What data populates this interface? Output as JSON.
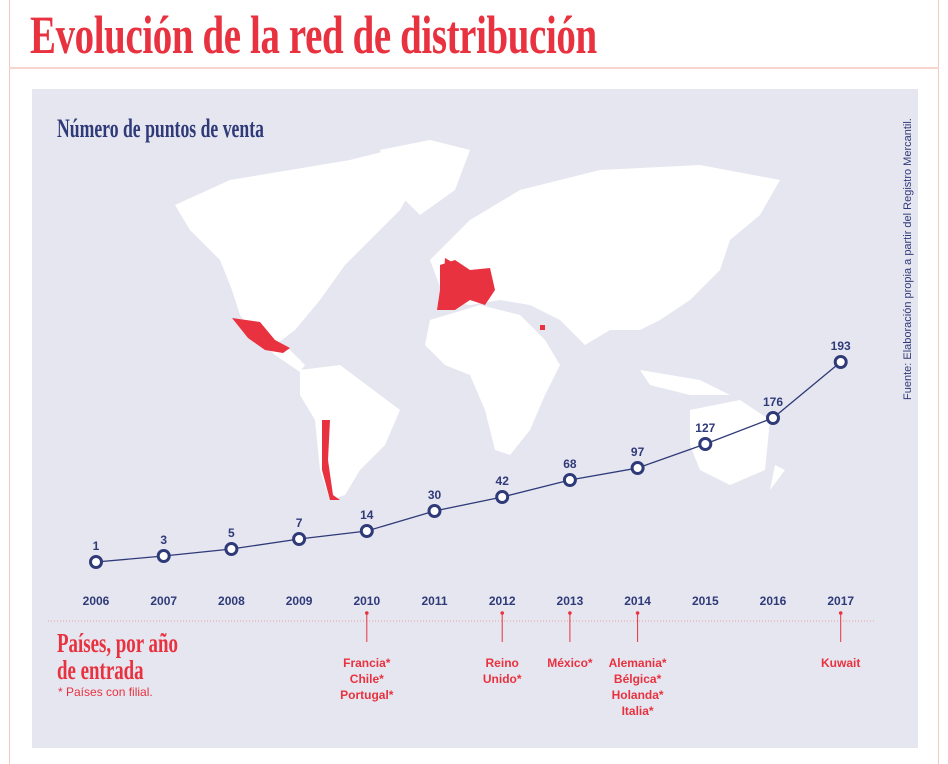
{
  "title": "Evolución de la red de distribución",
  "subtitle": "Número de puntos de venta",
  "source": "Fuente: Elaboración propia a partir del Registro Mercantil.",
  "countries_heading_line1": "Países, por año",
  "countries_heading_line2": "de entrada",
  "note": "* Países con filial.",
  "colors": {
    "accent": "#e8323f",
    "navy": "#2f3a78",
    "panel": "#e6e6f0",
    "land": "#ffffff"
  },
  "chart_data": {
    "type": "line",
    "title": "Número de puntos de venta",
    "categories": [
      "2006",
      "2007",
      "2008",
      "2009",
      "2010",
      "2011",
      "2012",
      "2013",
      "2014",
      "2015",
      "2016",
      "2017"
    ],
    "values": [
      1,
      3,
      5,
      7,
      14,
      30,
      42,
      68,
      97,
      127,
      176,
      193
    ],
    "entries": [
      {
        "year": "2010",
        "countries": [
          "Francia*",
          "Chile*",
          "Portugal*"
        ]
      },
      {
        "year": "2012",
        "countries": [
          "Reino",
          "Unido*"
        ]
      },
      {
        "year": "2013",
        "countries": [
          "México*"
        ]
      },
      {
        "year": "2014",
        "countries": [
          "Alemania*",
          "Bélgica*",
          "Holanda*",
          "Italia*"
        ]
      },
      {
        "year": "2017",
        "countries": [
          "Kuwait"
        ]
      }
    ],
    "highlighted_regions": [
      "Mexico",
      "Chile",
      "Spain",
      "Portugal",
      "France",
      "United Kingdom",
      "Belgium",
      "Netherlands",
      "Germany",
      "Italy",
      "Kuwait"
    ]
  }
}
